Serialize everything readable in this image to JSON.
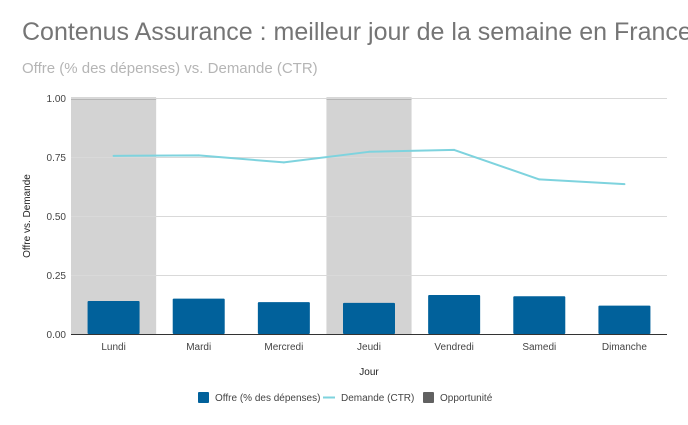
{
  "chart_data": {
    "type": "bar",
    "title": "Contenus Assurance : meilleur jour de la semaine en France",
    "subtitle": "Offre (% des dépenses) vs. Demande (CTR)",
    "xlabel": "Jour",
    "ylabel": "Offre vs. Demande",
    "categories": [
      "Lundi",
      "Mardi",
      "Mercredi",
      "Jeudi",
      "Vendredi",
      "Samedi",
      "Dimanche"
    ],
    "ylim": [
      0,
      1
    ],
    "yticks": [
      "0.00",
      "0.25",
      "0.50",
      "0.75",
      "1.00"
    ],
    "grid": true,
    "legend_position": "bottom",
    "series": [
      {
        "name": "Offre (% des dépenses)",
        "type": "bar",
        "color": "#01619b",
        "values": [
          0.14,
          0.15,
          0.135,
          0.132,
          0.165,
          0.16,
          0.12
        ]
      },
      {
        "name": "Demande (CTR)",
        "type": "line",
        "color": "#7ed3de",
        "values": [
          0.755,
          0.757,
          0.727,
          0.772,
          0.78,
          0.655,
          0.635
        ]
      },
      {
        "name": "Opportunité",
        "type": "bar",
        "color": "#d3d3d3",
        "legend_color": "#616161",
        "values": [
          1,
          0,
          0,
          1,
          0,
          0,
          0
        ]
      }
    ]
  }
}
